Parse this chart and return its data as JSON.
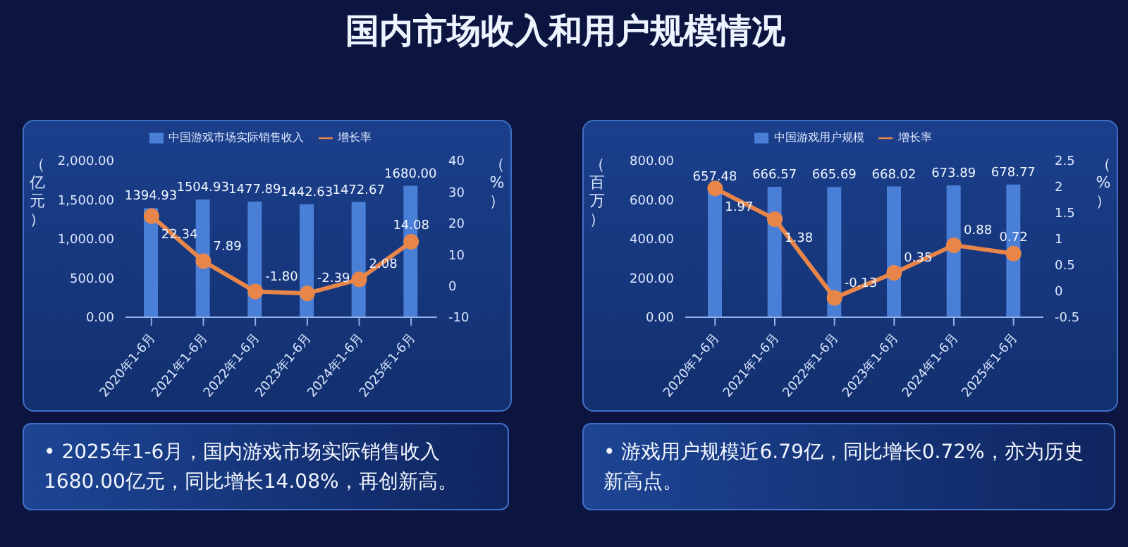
{
  "chart_data": [
    {
      "type": "bar",
      "title": "国内市场收入和用户规模情况",
      "categories": [
        "2020年1-6月",
        "2021年1-6月",
        "2022年1-6月",
        "2023年1-6月",
        "2024年1-6月",
        "2025年1-6月"
      ],
      "ylabel": "（亿元）",
      "y2label": "（%）",
      "series": [
        {
          "name": "中国游戏市场实际销售收入",
          "type": "bar",
          "color": "#4a7fd8",
          "values": [
            1394.93,
            1504.93,
            1477.89,
            1442.63,
            1472.67,
            1680.0
          ],
          "value_labels": [
            "1394.93",
            "1504.93",
            "1477.89",
            "1442.63",
            "1472.67",
            "1680.00"
          ]
        },
        {
          "name": "增长率",
          "type": "line",
          "axis": "y2",
          "color": "#e8864a",
          "values": [
            22.34,
            7.89,
            -1.8,
            -2.39,
            2.08,
            14.08
          ],
          "value_labels": [
            "22.34",
            "7.89",
            "-1.80",
            "-2.39",
            "2.08",
            "14.08"
          ]
        }
      ],
      "ylim": [
        0,
        2000
      ],
      "yticks": [
        {
          "value": 0,
          "label": "0.00"
        },
        {
          "value": 500,
          "label": "500.00"
        },
        {
          "value": 1000,
          "label": "1,000.00"
        },
        {
          "value": 1500,
          "label": "1,500.00"
        },
        {
          "value": 2000,
          "label": "2,000.00"
        }
      ],
      "y2lim": [
        -10,
        40
      ],
      "y2ticks": [
        -10,
        0,
        10,
        20,
        30,
        40
      ],
      "legend": "top",
      "marker": "circle",
      "grid": false
    },
    {
      "type": "bar",
      "categories": [
        "2020年1-6月",
        "2021年1-6月",
        "2022年1-6月",
        "2023年1-6月",
        "2024年1-6月",
        "2025年1-6月"
      ],
      "ylabel": "（百万）",
      "y2label": "（%）",
      "series": [
        {
          "name": "中国游戏用户规模",
          "type": "bar",
          "color": "#4a7fd8",
          "values": [
            657.48,
            666.57,
            665.69,
            668.02,
            673.89,
            678.77
          ],
          "value_labels": [
            "657.48",
            "666.57",
            "665.69",
            "668.02",
            "673.89",
            "678.77"
          ]
        },
        {
          "name": "增长率",
          "type": "line",
          "axis": "y2",
          "color": "#e8864a",
          "values": [
            1.97,
            1.38,
            -0.13,
            0.35,
            0.88,
            0.72
          ],
          "value_labels": [
            "1.97",
            "1.38",
            "-0.13",
            "0.35",
            "0.88",
            "0.72"
          ]
        }
      ],
      "ylim": [
        0,
        800
      ],
      "yticks": [
        {
          "value": 0,
          "label": "0.00"
        },
        {
          "value": 200,
          "label": "200.00"
        },
        {
          "value": 400,
          "label": "400.00"
        },
        {
          "value": 600,
          "label": "600.00"
        },
        {
          "value": 800,
          "label": "800.00"
        }
      ],
      "y2lim": [
        -0.5,
        2.5
      ],
      "y2ticks": [
        -0.5,
        0,
        0.5,
        1,
        1.5,
        2,
        2.5
      ],
      "legend": "top",
      "marker": "circle",
      "grid": false
    },
    {
      "type": "other",
      "annotations": [
        "• 2025年1-6月，国内游戏市场实际销售收入1680.00亿元，同比增长14.08%，再创新高。"
      ]
    },
    {
      "type": "other",
      "annotations": [
        "• 游戏用户规模近6.79亿，同比增长0.72%，亦为历史新高点。"
      ]
    }
  ]
}
